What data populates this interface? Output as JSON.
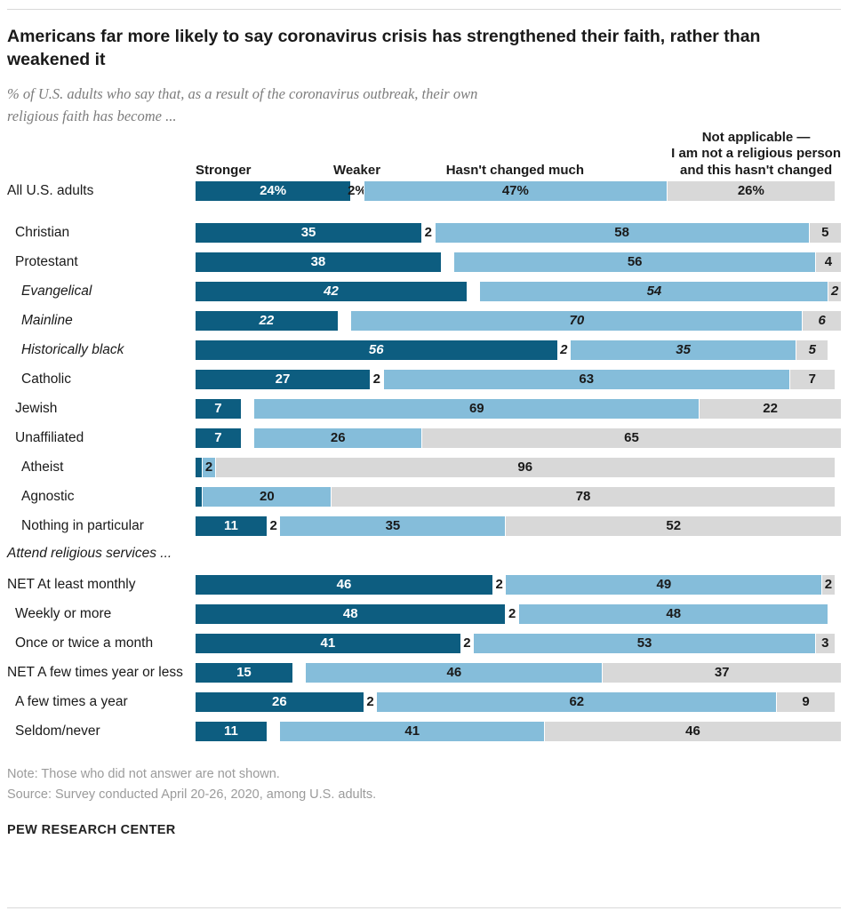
{
  "header": {
    "title": "Americans far more likely to say coronavirus crisis has strengthened their faith, rather than weakened it",
    "subtitle": "% of U.S. adults who say that, as a result of the coronavirus outbreak, their own religious faith has become ..."
  },
  "chart_data": {
    "type": "bar",
    "stacked": true,
    "orientation": "horizontal",
    "unit": "percent",
    "xlim": [
      0,
      100
    ],
    "column_headers": {
      "stronger": "Stronger",
      "weaker": "Weaker",
      "changed": "Hasn't changed much",
      "na": "Not applicable —\nI am not a religious person\nand this hasn't changed"
    },
    "series_names": [
      "Stronger",
      "Weaker",
      "Hasn't changed much",
      "Not applicable — I am not a religious person and this hasn't changed"
    ],
    "colors": {
      "stronger": "#0d5d80",
      "weaker": "#ffffff",
      "gap": "#ffffff",
      "changed": "#85bdda",
      "na": "#d8d8d8"
    },
    "rows": [
      {
        "label": "All U.S. adults",
        "indent": 0,
        "italic": false,
        "gap_after": true,
        "segments": [
          {
            "key": "stronger",
            "value": 24,
            "label": "24%"
          },
          {
            "key": "weaker",
            "value": 2,
            "label": "2%"
          },
          {
            "key": "changed",
            "value": 47,
            "label": "47%"
          },
          {
            "key": "na",
            "value": 26,
            "label": "26%"
          }
        ]
      },
      {
        "label": "Christian",
        "indent": 1,
        "italic": false,
        "segments": [
          {
            "key": "stronger",
            "value": 35,
            "label": "35"
          },
          {
            "key": "weaker",
            "value": 2,
            "label": "2"
          },
          {
            "key": "changed",
            "value": 58,
            "label": "58"
          },
          {
            "key": "na",
            "value": 5,
            "label": "5"
          }
        ]
      },
      {
        "label": "Protestant",
        "indent": 1,
        "italic": false,
        "segments": [
          {
            "key": "stronger",
            "value": 38,
            "label": "38"
          },
          {
            "key": "gap",
            "value": 2,
            "label": ""
          },
          {
            "key": "changed",
            "value": 56,
            "label": "56"
          },
          {
            "key": "na",
            "value": 4,
            "label": "4"
          }
        ]
      },
      {
        "label": "Evangelical",
        "indent": 2,
        "italic": true,
        "segments": [
          {
            "key": "stronger",
            "value": 42,
            "label": "42"
          },
          {
            "key": "gap",
            "value": 2,
            "label": ""
          },
          {
            "key": "changed",
            "value": 54,
            "label": "54"
          },
          {
            "key": "na",
            "value": 2,
            "label": "2"
          }
        ]
      },
      {
        "label": "Mainline",
        "indent": 2,
        "italic": true,
        "segments": [
          {
            "key": "stronger",
            "value": 22,
            "label": "22"
          },
          {
            "key": "gap",
            "value": 2,
            "label": ""
          },
          {
            "key": "changed",
            "value": 70,
            "label": "70"
          },
          {
            "key": "na",
            "value": 6,
            "label": "6"
          }
        ]
      },
      {
        "label": "Historically black",
        "indent": 2,
        "italic": true,
        "segments": [
          {
            "key": "stronger",
            "value": 56,
            "label": "56"
          },
          {
            "key": "weaker",
            "value": 2,
            "label": "2"
          },
          {
            "key": "changed",
            "value": 35,
            "label": "35"
          },
          {
            "key": "na",
            "value": 5,
            "label": "5"
          }
        ]
      },
      {
        "label": "Catholic",
        "indent": 2,
        "italic": false,
        "segments": [
          {
            "key": "stronger",
            "value": 27,
            "label": "27"
          },
          {
            "key": "weaker",
            "value": 2,
            "label": "2"
          },
          {
            "key": "changed",
            "value": 63,
            "label": "63"
          },
          {
            "key": "na",
            "value": 7,
            "label": "7"
          }
        ]
      },
      {
        "label": "Jewish",
        "indent": 1,
        "italic": false,
        "segments": [
          {
            "key": "stronger",
            "value": 7,
            "label": "7"
          },
          {
            "key": "gap",
            "value": 2,
            "label": ""
          },
          {
            "key": "changed",
            "value": 69,
            "label": "69"
          },
          {
            "key": "na",
            "value": 22,
            "label": "22"
          }
        ]
      },
      {
        "label": "Unaffiliated",
        "indent": 1,
        "italic": false,
        "segments": [
          {
            "key": "stronger",
            "value": 7,
            "label": "7"
          },
          {
            "key": "gap",
            "value": 2,
            "label": ""
          },
          {
            "key": "changed",
            "value": 26,
            "label": "26"
          },
          {
            "key": "na",
            "value": 65,
            "label": "65"
          }
        ]
      },
      {
        "label": "Atheist",
        "indent": 2,
        "italic": false,
        "segments": [
          {
            "key": "stronger",
            "value": 1,
            "label": ""
          },
          {
            "key": "changed",
            "value": 2,
            "label": "2"
          },
          {
            "key": "na",
            "value": 96,
            "label": "96"
          }
        ]
      },
      {
        "label": "Agnostic",
        "indent": 2,
        "italic": false,
        "segments": [
          {
            "key": "stronger",
            "value": 1,
            "label": ""
          },
          {
            "key": "changed",
            "value": 20,
            "label": "20"
          },
          {
            "key": "na",
            "value": 78,
            "label": "78"
          }
        ]
      },
      {
        "label": "Nothing in particular",
        "indent": 2,
        "italic": false,
        "segments": [
          {
            "key": "stronger",
            "value": 11,
            "label": "11"
          },
          {
            "key": "weaker",
            "value": 2,
            "label": "2"
          },
          {
            "key": "changed",
            "value": 35,
            "label": "35"
          },
          {
            "key": "na",
            "value": 52,
            "label": "52"
          }
        ]
      },
      {
        "type": "section",
        "label": "Attend religious services ..."
      },
      {
        "label": "NET At least monthly",
        "indent": 0,
        "italic": false,
        "segments": [
          {
            "key": "stronger",
            "value": 46,
            "label": "46"
          },
          {
            "key": "weaker",
            "value": 2,
            "label": "2"
          },
          {
            "key": "changed",
            "value": 49,
            "label": "49"
          },
          {
            "key": "na",
            "value": 2,
            "label": "2"
          }
        ]
      },
      {
        "label": "Weekly or more",
        "indent": 1,
        "italic": false,
        "segments": [
          {
            "key": "stronger",
            "value": 48,
            "label": "48"
          },
          {
            "key": "weaker",
            "value": 2,
            "label": "2"
          },
          {
            "key": "changed",
            "value": 48,
            "label": "48"
          }
        ]
      },
      {
        "label": "Once or twice a month",
        "indent": 1,
        "italic": false,
        "segments": [
          {
            "key": "stronger",
            "value": 41,
            "label": "41"
          },
          {
            "key": "weaker",
            "value": 2,
            "label": "2"
          },
          {
            "key": "changed",
            "value": 53,
            "label": "53"
          },
          {
            "key": "na",
            "value": 3,
            "label": "3"
          }
        ]
      },
      {
        "label": "NET A few times year or less",
        "indent": 0,
        "italic": false,
        "segments": [
          {
            "key": "stronger",
            "value": 15,
            "label": "15"
          },
          {
            "key": "gap",
            "value": 2,
            "label": ""
          },
          {
            "key": "changed",
            "value": 46,
            "label": "46"
          },
          {
            "key": "na",
            "value": 37,
            "label": "37"
          }
        ]
      },
      {
        "label": "A few times a year",
        "indent": 1,
        "italic": false,
        "segments": [
          {
            "key": "stronger",
            "value": 26,
            "label": "26"
          },
          {
            "key": "weaker",
            "value": 2,
            "label": "2"
          },
          {
            "key": "changed",
            "value": 62,
            "label": "62"
          },
          {
            "key": "na",
            "value": 9,
            "label": "9"
          }
        ]
      },
      {
        "label": "Seldom/never",
        "indent": 1,
        "italic": false,
        "segments": [
          {
            "key": "stronger",
            "value": 11,
            "label": "11"
          },
          {
            "key": "gap",
            "value": 2,
            "label": ""
          },
          {
            "key": "changed",
            "value": 41,
            "label": "41"
          },
          {
            "key": "na",
            "value": 46,
            "label": "46"
          }
        ]
      }
    ]
  },
  "footer": {
    "note": "Note: Those who did not answer are not shown.",
    "source": "Source: Survey conducted April 20-26, 2020, among U.S. adults.",
    "brand": "PEW RESEARCH CENTER"
  }
}
